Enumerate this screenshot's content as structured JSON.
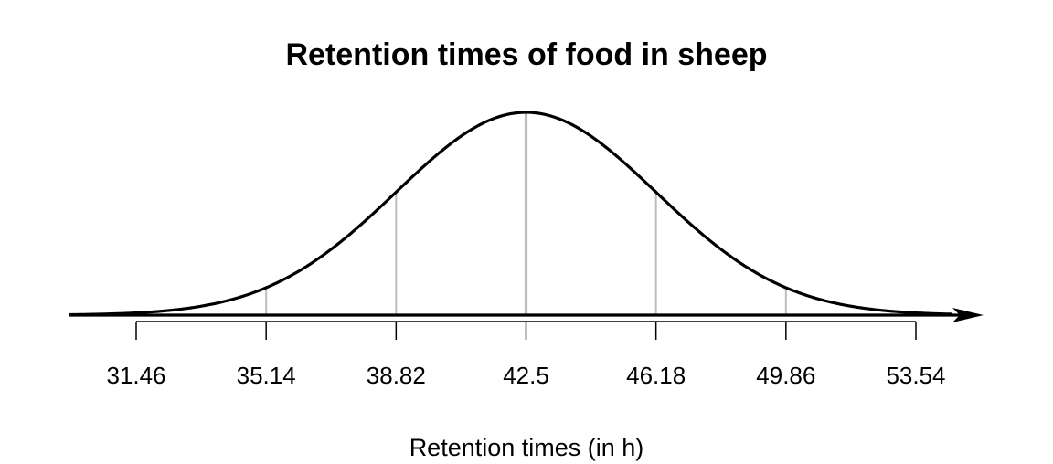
{
  "chart_data": {
    "type": "line",
    "title": "Retention times of food in sheep",
    "xlabel": "Retention times (in h)",
    "ylabel": "",
    "distribution": "normal",
    "mean": 42.5,
    "sd": 3.68,
    "tick_labels": [
      "31.46",
      "35.14",
      "38.82",
      "42.5",
      "46.18",
      "49.86",
      "53.54"
    ],
    "ticks": [
      31.46,
      35.14,
      38.82,
      42.5,
      46.18,
      49.86,
      53.54
    ],
    "reference_lines_at": [
      35.14,
      38.82,
      42.5,
      46.18,
      49.86
    ],
    "xlim": [
      28.9,
      57.5
    ],
    "colors": {
      "curve": "#000000",
      "reference": "#bdbdbd"
    }
  }
}
